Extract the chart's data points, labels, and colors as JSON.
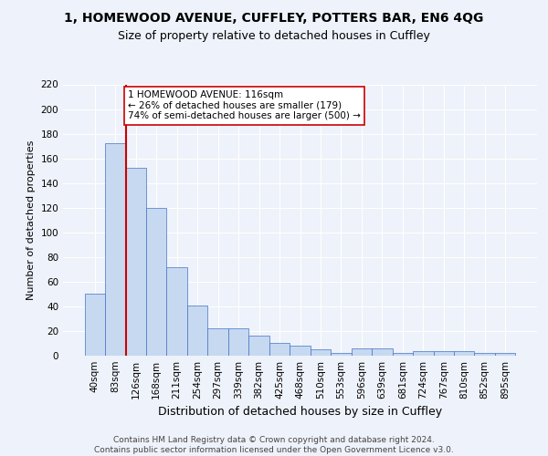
{
  "title1": "1, HOMEWOOD AVENUE, CUFFLEY, POTTERS BAR, EN6 4QG",
  "title2": "Size of property relative to detached houses in Cuffley",
  "xlabel": "Distribution of detached houses by size in Cuffley",
  "ylabel": "Number of detached properties",
  "categories": [
    "40sqm",
    "83sqm",
    "126sqm",
    "168sqm",
    "211sqm",
    "254sqm",
    "297sqm",
    "339sqm",
    "382sqm",
    "425sqm",
    "468sqm",
    "510sqm",
    "553sqm",
    "596sqm",
    "639sqm",
    "681sqm",
    "724sqm",
    "767sqm",
    "810sqm",
    "852sqm",
    "895sqm"
  ],
  "values": [
    50,
    172,
    152,
    120,
    72,
    41,
    22,
    22,
    16,
    10,
    8,
    5,
    2,
    6,
    6,
    2,
    4,
    4,
    4,
    2,
    2
  ],
  "bar_color": "#c6d9f0",
  "bar_edge_color": "#4472c4",
  "ylim": [
    0,
    220
  ],
  "yticks": [
    0,
    20,
    40,
    60,
    80,
    100,
    120,
    140,
    160,
    180,
    200,
    220
  ],
  "vline_color": "#cc0000",
  "annotation_text": "1 HOMEWOOD AVENUE: 116sqm\n← 26% of detached houses are smaller (179)\n74% of semi-detached houses are larger (500) →",
  "annotation_box_color": "#ffffff",
  "annotation_box_edge_color": "#cc0000",
  "footnote": "Contains HM Land Registry data © Crown copyright and database right 2024.\nContains public sector information licensed under the Open Government Licence v3.0.",
  "bg_color": "#eef2fa",
  "grid_color": "#ffffff",
  "title1_fontsize": 10,
  "title2_fontsize": 9,
  "xlabel_fontsize": 9,
  "ylabel_fontsize": 8,
  "tick_fontsize": 7.5,
  "annotation_fontsize": 7.5,
  "footnote_fontsize": 6.5
}
